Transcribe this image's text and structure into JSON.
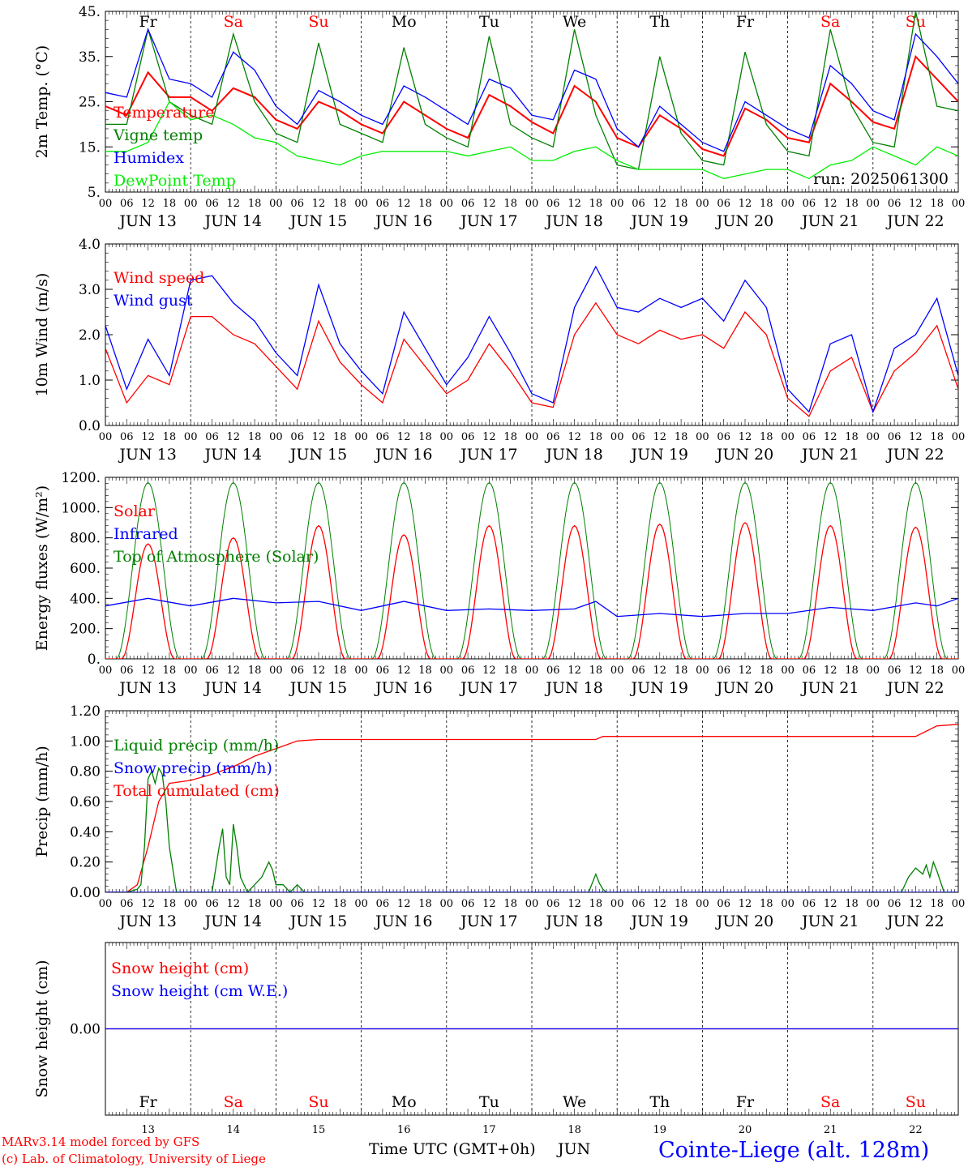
{
  "chart_data": [
    {
      "type": "line",
      "ylabel": "2m Temp. (°C)",
      "ylim": [
        5,
        45
      ],
      "yticks": [
        5,
        15,
        25,
        35,
        45
      ],
      "ytick_labels": [
        "5.",
        "15.",
        "25.",
        "35.",
        "45."
      ],
      "legend": [
        "Temperature",
        "Vigne temp",
        "Humidex",
        "DewPoint Temp"
      ],
      "annotation": "run: 2025061300",
      "series": [
        {
          "name": "Temperature",
          "color": "#ff0000",
          "x": [
            0,
            6,
            12,
            18,
            24,
            30,
            36,
            42,
            48,
            54,
            60,
            66,
            72,
            78,
            84,
            90,
            96,
            102,
            108,
            114,
            120,
            126,
            132,
            138,
            144,
            150,
            156,
            162,
            168,
            174,
            180,
            186,
            192,
            198,
            204,
            210,
            216,
            222,
            228,
            234,
            240
          ],
          "values": [
            24,
            22,
            31.5,
            26,
            26,
            23,
            28,
            26,
            21,
            19,
            25,
            23,
            20,
            18,
            25,
            22,
            19,
            17,
            26.5,
            24,
            20.5,
            18,
            28.5,
            25,
            17,
            15,
            22,
            19,
            14.5,
            13,
            23.5,
            21,
            17,
            16,
            29,
            25,
            20.5,
            19,
            35,
            30,
            25
          ]
        },
        {
          "name": "Vigne temp",
          "color": "#008000",
          "x": [
            0,
            6,
            12,
            18,
            24,
            30,
            36,
            42,
            48,
            54,
            60,
            66,
            72,
            78,
            84,
            90,
            96,
            102,
            108,
            114,
            120,
            126,
            132,
            138,
            144,
            150,
            156,
            162,
            168,
            174,
            180,
            186,
            192,
            198,
            204,
            210,
            216,
            222,
            228,
            234,
            240
          ],
          "values": [
            20,
            20,
            41,
            25,
            22,
            20,
            40,
            25,
            18,
            16,
            38,
            20,
            18,
            16,
            37,
            20,
            17,
            15,
            39.5,
            20,
            17,
            15,
            41,
            22,
            11,
            10,
            35,
            18,
            12,
            11,
            36,
            20,
            14,
            13,
            41,
            24,
            16,
            15,
            45,
            24,
            23
          ]
        },
        {
          "name": "Humidex",
          "color": "#0000ff",
          "x": [
            0,
            6,
            12,
            18,
            24,
            30,
            36,
            42,
            48,
            54,
            60,
            66,
            72,
            78,
            84,
            90,
            96,
            102,
            108,
            114,
            120,
            126,
            132,
            138,
            144,
            150,
            156,
            162,
            168,
            174,
            180,
            186,
            192,
            198,
            204,
            210,
            216,
            222,
            228,
            234,
            240
          ],
          "values": [
            27,
            26,
            41,
            30,
            29,
            26,
            36,
            32,
            24,
            20,
            27.5,
            25,
            22,
            20,
            28.5,
            26,
            23,
            20,
            30,
            28,
            22,
            21,
            32,
            30,
            19,
            15,
            24,
            20,
            16,
            14,
            25,
            22,
            19,
            17,
            33,
            29,
            23,
            21,
            40,
            35,
            29
          ]
        },
        {
          "name": "DewPoint Temp",
          "color": "#00ee00",
          "x": [
            0,
            6,
            12,
            18,
            24,
            30,
            36,
            42,
            48,
            54,
            60,
            66,
            72,
            78,
            84,
            90,
            96,
            102,
            108,
            114,
            120,
            126,
            132,
            138,
            144,
            150,
            156,
            162,
            168,
            174,
            180,
            186,
            192,
            198,
            204,
            210,
            216,
            222,
            228,
            234,
            240
          ],
          "values": [
            14,
            14,
            16,
            25,
            21,
            22,
            20,
            17,
            16,
            13,
            12,
            11,
            13,
            14,
            14,
            14,
            14,
            13,
            14,
            15,
            12,
            12,
            14,
            15,
            12,
            10,
            10,
            10,
            10,
            8,
            9,
            10,
            10,
            8,
            11,
            12,
            15,
            13,
            11,
            15,
            13
          ]
        }
      ]
    },
    {
      "type": "line",
      "ylabel": "10m Wind (m/s)",
      "ylim": [
        0,
        4
      ],
      "yticks": [
        0,
        1,
        2,
        3,
        4
      ],
      "ytick_labels": [
        "0.0",
        "1.0",
        "2.0",
        "3.0",
        "4.0"
      ],
      "legend": [
        "Wind speed",
        "Wind gust"
      ],
      "series": [
        {
          "name": "Wind speed",
          "color": "#ff0000",
          "x": [
            0,
            6,
            12,
            18,
            24,
            30,
            36,
            42,
            48,
            54,
            60,
            66,
            72,
            78,
            84,
            90,
            96,
            102,
            108,
            114,
            120,
            126,
            132,
            138,
            144,
            150,
            156,
            162,
            168,
            174,
            180,
            186,
            192,
            198,
            204,
            210,
            216,
            222,
            228,
            234,
            240
          ],
          "values": [
            1.7,
            0.5,
            1.1,
            0.9,
            2.4,
            2.4,
            2,
            1.8,
            1.3,
            0.8,
            2.3,
            1.4,
            0.9,
            0.5,
            1.9,
            1.3,
            0.7,
            1,
            1.8,
            1.2,
            0.5,
            0.4,
            2,
            2.7,
            2,
            1.8,
            2.1,
            1.9,
            2,
            1.7,
            2.5,
            2,
            0.6,
            0.2,
            1.2,
            1.5,
            0.3,
            1.2,
            1.6,
            2.2,
            0.8
          ]
        },
        {
          "name": "Wind gust",
          "color": "#0000ff",
          "x": [
            0,
            6,
            12,
            18,
            24,
            30,
            36,
            42,
            48,
            54,
            60,
            66,
            72,
            78,
            84,
            90,
            96,
            102,
            108,
            114,
            120,
            126,
            132,
            138,
            144,
            150,
            156,
            162,
            168,
            174,
            180,
            186,
            192,
            198,
            204,
            210,
            216,
            222,
            228,
            234,
            240
          ],
          "values": [
            2.2,
            0.8,
            1.9,
            1.1,
            3.2,
            3.3,
            2.7,
            2.3,
            1.6,
            1.1,
            3.1,
            1.8,
            1.2,
            0.7,
            2.5,
            1.7,
            0.9,
            1.5,
            2.4,
            1.6,
            0.7,
            0.5,
            2.6,
            3.5,
            2.6,
            2.5,
            2.8,
            2.6,
            2.8,
            2.3,
            3.2,
            2.6,
            0.8,
            0.3,
            1.8,
            2,
            0.3,
            1.7,
            2,
            2.8,
            1.1
          ]
        }
      ]
    },
    {
      "type": "line",
      "ylabel": "Energy fluxes (W/m²)",
      "ylim": [
        0,
        1200
      ],
      "yticks": [
        0,
        200,
        400,
        600,
        800,
        1000,
        1200
      ],
      "ytick_labels": [
        "0.",
        "200.",
        "400.",
        "600.",
        "800.",
        "1000.",
        "1200."
      ],
      "legend": [
        "Solar",
        "Infrared",
        "Top of Atmosphere (Solar)"
      ],
      "daily_solar_peak": [
        760,
        800,
        880,
        820,
        880,
        880,
        890,
        900,
        880,
        870
      ],
      "toa_peak": 1165,
      "series": [
        {
          "name": "Infrared",
          "color": "#0000ff",
          "x": [
            0,
            12,
            24,
            36,
            48,
            60,
            72,
            84,
            96,
            108,
            120,
            132,
            138,
            144,
            156,
            168,
            180,
            192,
            204,
            216,
            228,
            234,
            240
          ],
          "values": [
            350,
            400,
            350,
            400,
            370,
            380,
            320,
            380,
            320,
            330,
            320,
            330,
            380,
            280,
            300,
            280,
            300,
            300,
            340,
            320,
            370,
            350,
            400
          ]
        }
      ]
    },
    {
      "type": "line",
      "ylabel": "Precip (mm/h)",
      "ylim": [
        0,
        1.2
      ],
      "yticks": [
        0,
        0.2,
        0.4,
        0.6,
        0.8,
        1,
        1.2
      ],
      "ytick_labels": [
        "0.00",
        "0.20",
        "0.40",
        "0.60",
        "0.80",
        "1.00",
        "1.20"
      ],
      "legend": [
        "Liquid precip (mm/h)",
        "Snow precip (mm/h)",
        "Total cumulated (cm)"
      ],
      "series": [
        {
          "name": "Total cumulated (cm)",
          "color": "#ff0000",
          "x": [
            0,
            6,
            9,
            12,
            15,
            18,
            24,
            30,
            36,
            42,
            48,
            54,
            60,
            72,
            96,
            120,
            138,
            140,
            144,
            168,
            192,
            216,
            228,
            234,
            240
          ],
          "values": [
            0,
            0,
            0.05,
            0.3,
            0.6,
            0.72,
            0.74,
            0.78,
            0.83,
            0.9,
            0.95,
            1.0,
            1.01,
            1.01,
            1.01,
            1.01,
            1.01,
            1.03,
            1.03,
            1.03,
            1.03,
            1.03,
            1.03,
            1.1,
            1.11
          ]
        },
        {
          "name": "Liquid precip (mm/h)",
          "color": "#008000",
          "x": [
            0,
            6,
            9,
            10,
            11,
            12,
            13,
            14,
            15,
            16,
            17,
            18,
            20,
            24,
            30,
            32,
            33,
            34,
            35,
            36,
            37,
            38,
            40,
            44,
            46,
            47,
            48,
            50,
            52,
            54,
            56,
            58,
            60,
            136,
            138,
            139,
            140,
            141,
            142,
            224,
            226,
            228,
            230,
            231,
            232,
            233,
            234,
            236,
            240
          ],
          "values": [
            0,
            0,
            0.02,
            0.05,
            0.3,
            0.75,
            0.8,
            0.72,
            0.82,
            0.78,
            0.6,
            0.3,
            0,
            0,
            0,
            0.3,
            0.42,
            0.1,
            0.05,
            0.45,
            0.3,
            0.1,
            0,
            0.1,
            0.2,
            0.15,
            0.05,
            0.05,
            0,
            0.05,
            0,
            0,
            0,
            0,
            0.12,
            0.06,
            0.02,
            0,
            0,
            0,
            0.1,
            0.16,
            0.12,
            0.18,
            0.1,
            0.2,
            0.14,
            0,
            0
          ]
        },
        {
          "name": "Snow precip (mm/h)",
          "color": "#0000ff",
          "x": [
            0,
            240
          ],
          "values": [
            0,
            0
          ]
        }
      ]
    },
    {
      "type": "line",
      "ylabel": "Snow height (cm)",
      "ylim": [
        -1,
        1
      ],
      "yticks": [
        0
      ],
      "ytick_labels": [
        "0.00"
      ],
      "legend": [
        "Snow height (cm)",
        "Snow height (cm W.E.)"
      ],
      "series": [
        {
          "name": "Snow height (cm)",
          "color": "#ff0000",
          "x": [
            0,
            240
          ],
          "values": [
            0,
            0
          ]
        },
        {
          "name": "Snow height (cm W.E.)",
          "color": "#0000ff",
          "x": [
            0,
            240
          ],
          "values": [
            0,
            0
          ]
        }
      ]
    }
  ],
  "shared_axis": {
    "x_range_hours": [
      0,
      240
    ],
    "hour_labels": [
      "00",
      "06",
      "12",
      "18"
    ],
    "final_hour_label": "00",
    "dates": [
      "JUN 13",
      "JUN 14",
      "JUN 15",
      "JUN 16",
      "JUN 17",
      "JUN 18",
      "JUN 19",
      "JUN 20",
      "JUN 21",
      "JUN 22"
    ],
    "days": [
      "Fr",
      "Sa",
      "Su",
      "Mo",
      "Tu",
      "We",
      "Th",
      "Fr",
      "Sa",
      "Su"
    ],
    "weekend_days": [
      false,
      true,
      true,
      false,
      false,
      false,
      false,
      false,
      true,
      true
    ],
    "day_numbers": [
      "13",
      "14",
      "15",
      "16",
      "17",
      "18",
      "19",
      "20",
      "21",
      "22"
    ],
    "xlabel": "Time UTC (GMT+0h)",
    "month": "JUN"
  },
  "footer": {
    "model_line": "MARv3.14 model forced by GFS",
    "credit_line": "(c) Lab. of Climatology, University of Liege",
    "station": "Cointe-Liege (alt. 128m)"
  },
  "colors": {
    "weekday": "#000000",
    "weekend": "#ff0000",
    "footer_red": "#ff0000",
    "station_blue": "#0000ff"
  }
}
